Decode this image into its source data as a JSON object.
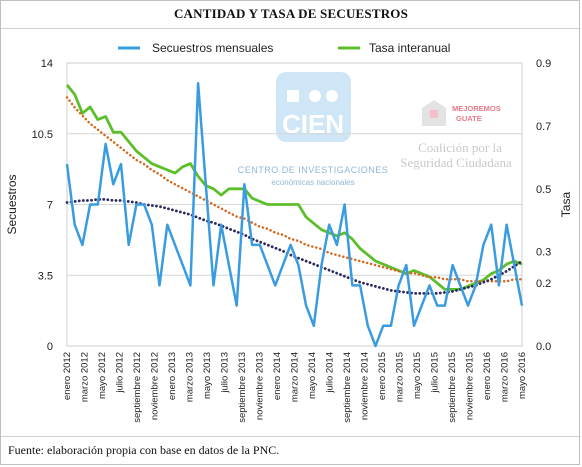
{
  "chart_data": {
    "type": "line",
    "title": "CANTIDAD Y TASA DE SECUESTROS",
    "ylabel_left": "Secuestros",
    "ylabel_right": "Tasa",
    "ylim_left": [
      0,
      14
    ],
    "ylim_right": [
      0,
      0.9
    ],
    "yticks_left": [
      "0",
      "3.5",
      "7",
      "10.5",
      "14"
    ],
    "yticks_right": [
      "0.0",
      "0.2",
      "0.3",
      "0.5",
      "0.7",
      "0.9"
    ],
    "grid": true,
    "legend_placement": "top",
    "x_labels": [
      "enero 2012",
      "marzo 2012",
      "mayo 2012",
      "julio 2012",
      "septiembre 2012",
      "noviembre 2012",
      "enero 2013",
      "marzo 2013",
      "mayo 2013",
      "julio 2013",
      "septiembre 2013",
      "noviembre 2013",
      "enero 2014",
      "marzo 2014",
      "mayo 2014",
      "julio 2014",
      "septiembre 2014",
      "noviembre 2014",
      "enero 2015",
      "marzo 2015",
      "mayo 2015",
      "julio 2015",
      "septiembre 2015",
      "noviembre 2015",
      "enero 2016",
      "marzo 2016",
      "mayo 2016"
    ],
    "series": [
      {
        "name": "Secuestros mensuales",
        "axis": "left",
        "color": "#3a9ce0",
        "values": [
          9,
          6,
          5,
          7,
          7,
          10,
          8,
          9,
          5,
          7,
          7,
          6,
          3,
          6,
          5,
          4,
          3,
          13,
          8,
          3,
          6,
          4,
          2,
          8,
          5,
          5,
          4,
          3,
          4,
          5,
          4,
          2,
          1,
          4,
          6,
          5,
          7,
          3,
          3,
          1,
          0,
          1,
          1,
          3,
          4,
          1,
          2,
          3,
          2,
          2,
          4,
          3,
          2,
          3,
          5,
          6,
          3,
          6,
          4,
          2
        ]
      },
      {
        "name": "Tasa interanual",
        "axis": "right",
        "color": "#5cbf2a",
        "values": [
          0.83,
          0.8,
          0.74,
          0.76,
          0.72,
          0.73,
          0.68,
          0.68,
          0.65,
          0.62,
          0.6,
          0.58,
          0.57,
          0.56,
          0.55,
          0.57,
          0.58,
          0.54,
          0.51,
          0.5,
          0.48,
          0.5,
          0.5,
          0.5,
          0.47,
          0.46,
          0.45,
          0.45,
          0.45,
          0.45,
          0.45,
          0.41,
          0.39,
          0.37,
          0.36,
          0.35,
          0.36,
          0.34,
          0.31,
          0.29,
          0.27,
          0.26,
          0.25,
          0.24,
          0.23,
          0.24,
          0.23,
          0.22,
          0.2,
          0.18,
          0.18,
          0.18,
          0.19,
          0.2,
          0.21,
          0.23,
          0.24,
          0.26,
          0.27,
          0.26
        ]
      },
      {
        "name": "",
        "axis": "left",
        "style": "dotted",
        "color": "#d2691e",
        "values": [
          12.3,
          11.8,
          11.4,
          11.0,
          10.7,
          10.4,
          10.1,
          9.8,
          9.5,
          9.2,
          9.0,
          8.7,
          8.5,
          8.2,
          8.0,
          7.8,
          7.6,
          7.4,
          7.2,
          7.0,
          6.8,
          6.6,
          6.4,
          6.3,
          6.1,
          5.9,
          5.8,
          5.6,
          5.5,
          5.3,
          5.2,
          5.0,
          4.9,
          4.8,
          4.6,
          4.5,
          4.4,
          4.3,
          4.2,
          4.1,
          4.0,
          3.9,
          3.8,
          3.7,
          3.6,
          3.6,
          3.5,
          3.4,
          3.4,
          3.3,
          3.3,
          3.3,
          3.2,
          3.2,
          3.2,
          3.2,
          3.2,
          3.2,
          3.3,
          3.3
        ]
      },
      {
        "name": "",
        "axis": "left",
        "style": "dotted",
        "color": "#2b2b5e",
        "values": [
          7.1,
          7.15,
          7.2,
          7.2,
          7.25,
          7.25,
          7.2,
          7.2,
          7.15,
          7.1,
          7.0,
          6.95,
          6.9,
          6.8,
          6.7,
          6.6,
          6.5,
          6.35,
          6.2,
          6.1,
          5.95,
          5.8,
          5.65,
          5.5,
          5.3,
          5.15,
          5.0,
          4.85,
          4.7,
          4.5,
          4.35,
          4.2,
          4.05,
          3.9,
          3.75,
          3.6,
          3.45,
          3.3,
          3.15,
          3.05,
          2.95,
          2.85,
          2.75,
          2.7,
          2.65,
          2.6,
          2.6,
          2.6,
          2.6,
          2.65,
          2.7,
          2.8,
          2.9,
          3.0,
          3.15,
          3.3,
          3.5,
          3.7,
          3.95,
          4.2
        ]
      }
    ]
  },
  "logo": {
    "cien_text": "CIEN",
    "cien_subtitle": "CENTRO DE INVESTIGACIONES",
    "cien_subtitle2": "económicas nacionales",
    "mg_text_line1": "MEJOREMOS",
    "mg_text_line2": "GUATE",
    "coalition_line1": "Coalición por la",
    "coalition_line2": "Seguridad Ciudadana"
  },
  "source": "Fuente: elaboración propia con base en datos de la PNC."
}
